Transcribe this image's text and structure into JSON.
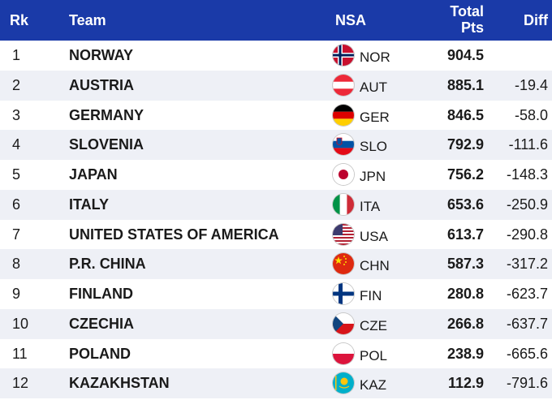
{
  "header": {
    "rank": "Rk",
    "team": "Team",
    "nsa": "NSA",
    "total_line1": "Total",
    "total_line2": "Pts",
    "diff": "Diff"
  },
  "colors": {
    "header_bg": "#1a3aa8",
    "row_alt_bg": "#eef0f6"
  },
  "rows": [
    {
      "rank": "1",
      "team": "NORWAY",
      "code": "NOR",
      "points": "904.5",
      "diff": "",
      "flag_icon": "norway-flag-icon"
    },
    {
      "rank": "2",
      "team": "AUSTRIA",
      "code": "AUT",
      "points": "885.1",
      "diff": "-19.4",
      "flag_icon": "austria-flag-icon"
    },
    {
      "rank": "3",
      "team": "GERMANY",
      "code": "GER",
      "points": "846.5",
      "diff": "-58.0",
      "flag_icon": "germany-flag-icon"
    },
    {
      "rank": "4",
      "team": "SLOVENIA",
      "code": "SLO",
      "points": "792.9",
      "diff": "-111.6",
      "flag_icon": "slovenia-flag-icon"
    },
    {
      "rank": "5",
      "team": "JAPAN",
      "code": "JPN",
      "points": "756.2",
      "diff": "-148.3",
      "flag_icon": "japan-flag-icon"
    },
    {
      "rank": "6",
      "team": "ITALY",
      "code": "ITA",
      "points": "653.6",
      "diff": "-250.9",
      "flag_icon": "italy-flag-icon"
    },
    {
      "rank": "7",
      "team": "UNITED STATES OF AMERICA",
      "code": "USA",
      "points": "613.7",
      "diff": "-290.8",
      "flag_icon": "usa-flag-icon"
    },
    {
      "rank": "8",
      "team": "P.R. CHINA",
      "code": "CHN",
      "points": "587.3",
      "diff": "-317.2",
      "flag_icon": "china-flag-icon"
    },
    {
      "rank": "9",
      "team": "FINLAND",
      "code": "FIN",
      "points": "280.8",
      "diff": "-623.7",
      "flag_icon": "finland-flag-icon"
    },
    {
      "rank": "10",
      "team": "CZECHIA",
      "code": "CZE",
      "points": "266.8",
      "diff": "-637.7",
      "flag_icon": "czechia-flag-icon"
    },
    {
      "rank": "11",
      "team": "POLAND",
      "code": "POL",
      "points": "238.9",
      "diff": "-665.6",
      "flag_icon": "poland-flag-icon"
    },
    {
      "rank": "12",
      "team": "KAZAKHSTAN",
      "code": "KAZ",
      "points": "112.9",
      "diff": "-791.6",
      "flag_icon": "kazakhstan-flag-icon"
    }
  ]
}
